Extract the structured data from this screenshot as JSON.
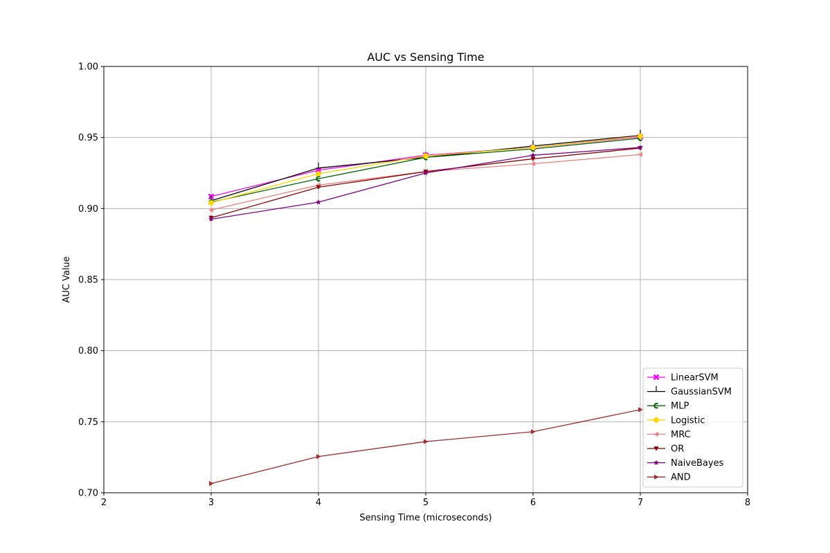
{
  "chart_data": {
    "type": "line",
    "title": "AUC vs Sensing Time",
    "xlabel": "Sensing Time (microseconds)",
    "ylabel": "AUC Value",
    "xlim": [
      2,
      8
    ],
    "ylim": [
      0.7,
      1.0
    ],
    "xticks": [
      "2",
      "3",
      "4",
      "5",
      "6",
      "7",
      "8"
    ],
    "yticks": [
      "0.70",
      "0.75",
      "0.80",
      "0.85",
      "0.90",
      "0.95",
      "1.00"
    ],
    "grid": true,
    "legend_position": "lower-right",
    "x": [
      3,
      4,
      5,
      6,
      7
    ],
    "series": [
      {
        "name": "LinearSVM",
        "color": "#ff00ff",
        "marker": "x-filled",
        "values": [
          0.9085,
          0.927,
          0.9375,
          0.943,
          0.9505
        ]
      },
      {
        "name": "GaussianSVM",
        "color": "#000000",
        "marker": "tick-up",
        "values": [
          0.9055,
          0.9285,
          0.936,
          0.944,
          0.9515
        ]
      },
      {
        "name": "MLP",
        "color": "#006400",
        "marker": "c-left",
        "values": [
          0.9045,
          0.921,
          0.936,
          0.942,
          0.9495
        ]
      },
      {
        "name": "Logistic",
        "color": "#ffd700",
        "marker": "circle",
        "values": [
          0.904,
          0.9245,
          0.937,
          0.943,
          0.951
        ]
      },
      {
        "name": "MRC",
        "color": "#f08080",
        "marker": "triangle-left",
        "values": [
          0.899,
          0.9165,
          0.926,
          0.9315,
          0.938
        ]
      },
      {
        "name": "OR",
        "color": "#8b0000",
        "marker": "triangle-down",
        "values": [
          0.8935,
          0.915,
          0.926,
          0.935,
          0.9425
        ]
      },
      {
        "name": "NaiveBayes",
        "color": "#800080",
        "marker": "star",
        "values": [
          0.8925,
          0.9045,
          0.925,
          0.9375,
          0.943
        ]
      },
      {
        "name": "AND",
        "color": "#a52a2a",
        "marker": "triangle-right",
        "values": [
          0.7065,
          0.7255,
          0.736,
          0.743,
          0.7585
        ]
      }
    ]
  }
}
